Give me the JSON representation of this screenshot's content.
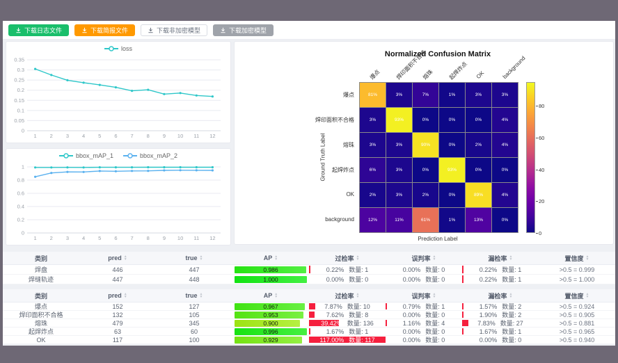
{
  "toolbar": {
    "buttons": [
      {
        "label": "下载日志文件",
        "bg": "#19be6b",
        "fg": "#ffffff",
        "border": "#19be6b"
      },
      {
        "label": "下载简报文件",
        "bg": "#ff9900",
        "fg": "#ffffff",
        "border": "#ff9900"
      },
      {
        "label": "下载非加密模型",
        "bg": "#ffffff",
        "fg": "#6b7380",
        "border": "#d9dce3"
      },
      {
        "label": "下载加密模型",
        "bg": "#9fa3aa",
        "fg": "#ffffff",
        "border": "#9fa3aa"
      }
    ]
  },
  "chart_data": [
    {
      "type": "line",
      "x": [
        1,
        2,
        3,
        4,
        5,
        6,
        7,
        8,
        9,
        10,
        11,
        12
      ],
      "series": [
        {
          "name": "loss",
          "color": "#2ec7c9",
          "values": [
            0.305,
            0.275,
            0.249,
            0.237,
            0.226,
            0.214,
            0.197,
            0.202,
            0.181,
            0.186,
            0.174,
            0.169
          ]
        }
      ],
      "ylim": [
        0,
        0.35
      ],
      "ytick_step": 0.05,
      "grid": true,
      "legend_position": "top"
    },
    {
      "type": "line",
      "x": [
        1,
        2,
        3,
        4,
        5,
        6,
        7,
        8,
        9,
        10,
        11,
        12
      ],
      "series": [
        {
          "name": "bbox_mAP_1",
          "color": "#2ec7c9",
          "values": [
            0.992,
            0.992,
            0.993,
            0.992,
            0.994,
            0.994,
            0.994,
            0.995,
            0.995,
            0.995,
            0.995,
            0.995
          ]
        },
        {
          "name": "bbox_mAP_2",
          "color": "#5ab1ef",
          "values": [
            0.851,
            0.908,
            0.924,
            0.923,
            0.938,
            0.934,
            0.939,
            0.94,
            0.947,
            0.95,
            0.948,
            0.947
          ]
        }
      ],
      "ylim": [
        0,
        1
      ],
      "ytick_step": 0.2,
      "grid": true,
      "legend_position": "top"
    },
    {
      "type": "heatmap",
      "title": "Normalized Confusion Matrix",
      "xlabel": "Prediction Label",
      "ylabel": "Ground Truth Label",
      "labels": [
        "爆点",
        "焊印面积不合格",
        "熔珠",
        "起焊炸点",
        "OK",
        "background"
      ],
      "matrix": [
        [
          81,
          3,
          7,
          1,
          3,
          3
        ],
        [
          3,
          93,
          0,
          0,
          0,
          4
        ],
        [
          3,
          3,
          90,
          0,
          2,
          4
        ],
        [
          6,
          3,
          0,
          93,
          0,
          0
        ],
        [
          2,
          3,
          2,
          0,
          89,
          4
        ],
        [
          12,
          11,
          61,
          1,
          13,
          0
        ]
      ],
      "unit": "%",
      "colormap": "plasma",
      "vmax": 95,
      "colorbar_ticks": [
        0,
        20,
        40,
        60,
        80
      ]
    }
  ],
  "tables": {
    "count_label": "数量:",
    "columns": [
      "类别",
      "pred",
      "true",
      "AP",
      "过检率",
      "误判率",
      "漏检率",
      "置信度"
    ],
    "sortable": [
      false,
      true,
      true,
      true,
      true,
      true,
      true,
      true
    ],
    "groups": [
      {
        "rows": [
          {
            "cat": "焊盘",
            "pred": "446",
            "true": "447",
            "ap": 0.986,
            "rates": [
              {
                "r": 0.22,
                "n": 1
              },
              {
                "r": 0.0,
                "n": 0
              },
              {
                "r": 0.22,
                "n": 1
              }
            ],
            "conf": ">0.5 = 0.999"
          },
          {
            "cat": "焊缝轨迹",
            "pred": "447",
            "true": "448",
            "ap": 1.0,
            "rates": [
              {
                "r": 0.0,
                "n": 0
              },
              {
                "r": 0.0,
                "n": 0
              },
              {
                "r": 0.22,
                "n": 1
              }
            ],
            "conf": ">0.5 = 1.000"
          }
        ]
      },
      {
        "rows": [
          {
            "cat": "爆点",
            "pred": "152",
            "true": "127",
            "ap": 0.967,
            "rates": [
              {
                "r": 7.87,
                "n": 10
              },
              {
                "r": 0.79,
                "n": 1
              },
              {
                "r": 1.57,
                "n": 2
              }
            ],
            "conf": ">0.5 = 0.924"
          },
          {
            "cat": "焊印面积不合格",
            "pred": "132",
            "true": "105",
            "ap": 0.953,
            "rates": [
              {
                "r": 7.62,
                "n": 8
              },
              {
                "r": 0.0,
                "n": 0
              },
              {
                "r": 1.9,
                "n": 2
              }
            ],
            "conf": ">0.5 = 0.905"
          },
          {
            "cat": "熔珠",
            "pred": "479",
            "true": "345",
            "ap": 0.9,
            "rates": [
              {
                "r": 39.42,
                "n": 136
              },
              {
                "r": 1.16,
                "n": 4
              },
              {
                "r": 7.83,
                "n": 27
              }
            ],
            "conf": ">0.5 = 0.881"
          },
          {
            "cat": "起焊炸点",
            "pred": "63",
            "true": "60",
            "ap": 0.996,
            "rates": [
              {
                "r": 1.67,
                "n": 1
              },
              {
                "r": 0.0,
                "n": 0
              },
              {
                "r": 1.67,
                "n": 1
              }
            ],
            "conf": ">0.5 = 0.965"
          },
          {
            "cat": "OK",
            "pred": "117",
            "true": "100",
            "ap": 0.929,
            "rates": [
              {
                "r": 117.0,
                "n": 117
              },
              {
                "r": 0.0,
                "n": 0
              },
              {
                "r": 0.0,
                "n": 0
              }
            ],
            "conf": ">0.5 = 0.940"
          }
        ]
      }
    ]
  },
  "colors": {
    "accent_green": "#19be6b",
    "accent_orange": "#ff9900",
    "loss_line": "#2ec7c9",
    "map2_line": "#5ab1ef",
    "rate_bar_red": "#f5203e",
    "frame_dark": "#6e6875"
  }
}
